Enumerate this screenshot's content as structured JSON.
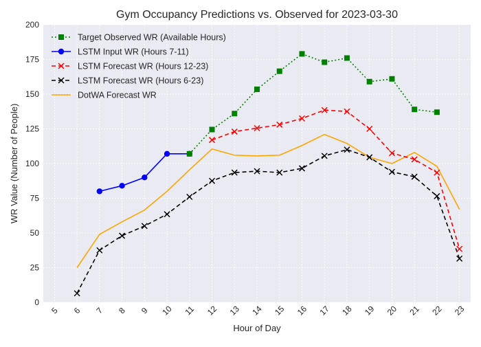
{
  "chart_data": {
    "type": "line",
    "title": "Gym Occupancy Predictions vs. Observed for 2023-03-30",
    "xlabel": "Hour of Day",
    "ylabel": "WR Value (Number of People)",
    "xlim": [
      4.5,
      23.5
    ],
    "ylim": [
      0,
      200
    ],
    "x_ticks": [
      5,
      6,
      7,
      8,
      9,
      10,
      11,
      12,
      13,
      14,
      15,
      16,
      17,
      18,
      19,
      20,
      21,
      22,
      23
    ],
    "y_ticks": [
      0,
      25,
      50,
      75,
      100,
      125,
      150,
      175,
      200
    ],
    "grid": true,
    "legend_position": "top-left",
    "background": "#eaeaf2",
    "series": [
      {
        "name": "Target Observed WR (Available Hours)",
        "color": "#008000",
        "line_style": "dotted",
        "marker": "square",
        "x": [
          11,
          12,
          13,
          14,
          15,
          16,
          17,
          18,
          19,
          20,
          21,
          22
        ],
        "y": [
          107,
          124.5,
          136,
          153.5,
          166.5,
          179,
          173,
          176,
          159,
          161,
          139,
          137
        ]
      },
      {
        "name": "LSTM Input WR (Hours 7-11)",
        "color": "#0000ff",
        "line_style": "solid",
        "marker": "circle",
        "x": [
          7,
          8,
          9,
          10,
          11
        ],
        "y": [
          80,
          84,
          90,
          107,
          107
        ]
      },
      {
        "name": "LSTM Forecast WR (Hours 12-23)",
        "color": "#ff0000",
        "line_style": "dashed",
        "marker": "x",
        "x": [
          12,
          13,
          14,
          15,
          16,
          17,
          18,
          19,
          20,
          21,
          22,
          23
        ],
        "y": [
          117,
          123,
          125.5,
          128,
          132.5,
          138.5,
          137.5,
          125,
          107.5,
          103,
          93.5,
          38.5
        ]
      },
      {
        "name": "LSTM Forecast WR (Hours 6-23)",
        "color": "#000000",
        "line_style": "dashed",
        "marker": "x",
        "x": [
          6,
          7,
          8,
          9,
          10,
          11,
          12,
          13,
          14,
          15,
          16,
          17,
          18,
          19,
          20,
          21,
          22,
          23
        ],
        "y": [
          6.5,
          37.5,
          48,
          55,
          63.5,
          76,
          87.5,
          93.5,
          94.5,
          93.5,
          96.5,
          105.5,
          110,
          104.5,
          94,
          90.5,
          76.5,
          31.5
        ]
      },
      {
        "name": "DotWA Forecast WR",
        "color": "#ffa500",
        "line_style": "solid",
        "marker": "none",
        "x": [
          6,
          7,
          8,
          9,
          10,
          11,
          12,
          13,
          14,
          15,
          16,
          17,
          18,
          19,
          20,
          21,
          22,
          23
        ],
        "y": [
          25,
          49,
          58,
          66.5,
          80,
          95.5,
          110.5,
          106,
          105.5,
          106,
          113,
          121,
          114.5,
          104.5,
          100,
          108,
          98,
          67
        ]
      }
    ]
  }
}
